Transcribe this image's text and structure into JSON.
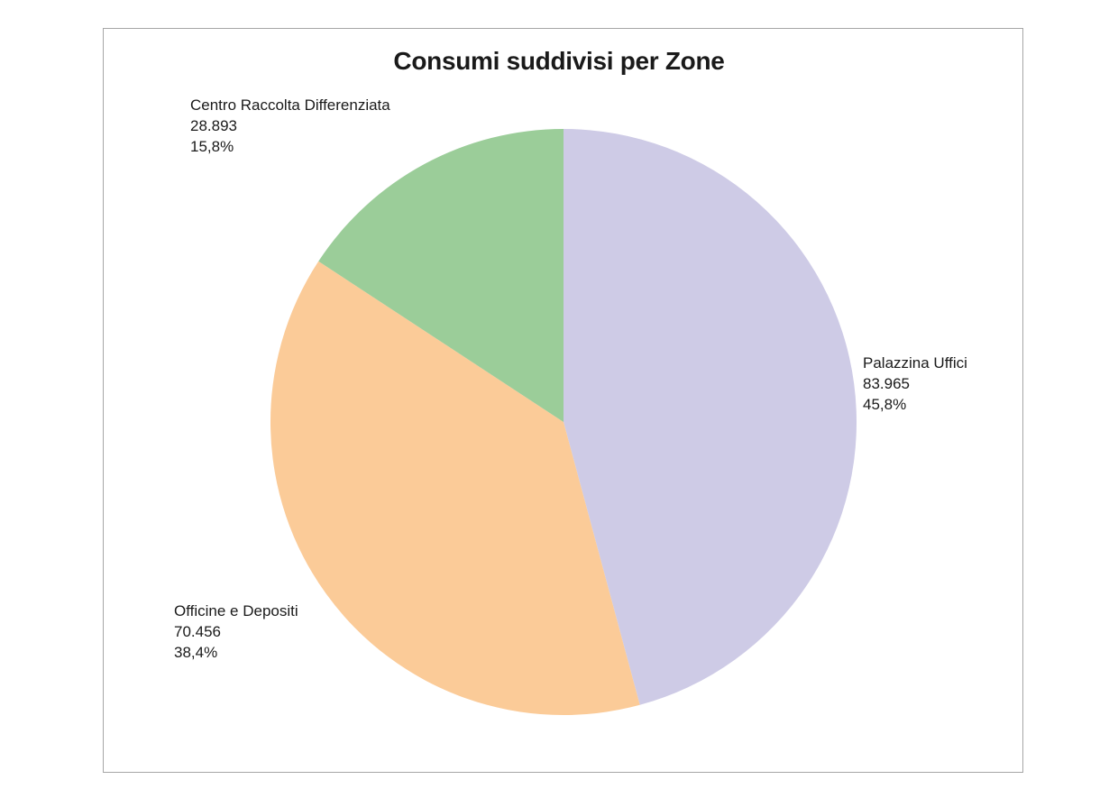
{
  "chart_data": {
    "type": "pie",
    "title": "Consumi suddivisi per Zone",
    "slices": [
      {
        "name": "Palazzina Uffici",
        "value": 83965,
        "value_label": "83.965",
        "percent_label": "45,8%",
        "color": "#cecbe6"
      },
      {
        "name": "Officine e Depositi",
        "value": 70456,
        "value_label": "70.456",
        "percent_label": "38,4%",
        "color": "#fbcb98"
      },
      {
        "name": "Centro Raccolta Differenziata",
        "value": 28893,
        "value_label": "28.893",
        "percent_label": "15,8%",
        "color": "#9bcd99"
      }
    ],
    "start_angle": "12 o'clock",
    "direction": "clockwise"
  }
}
